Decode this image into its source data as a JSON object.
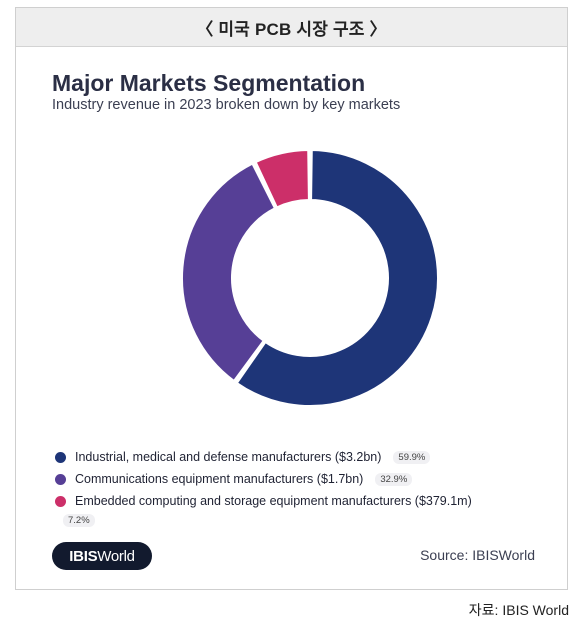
{
  "figure_caption": "〈 미국 PCB 시장 구조 〉",
  "footer_source": "자료: IBIS World",
  "logo": {
    "bold": "IBIS",
    "regular": "World"
  },
  "source_label": "Source: IBISWorld",
  "chart_data": {
    "type": "pie",
    "donut": true,
    "title": "Major Markets Segmentation",
    "subtitle": "Industry revenue in 2023 broken down by key markets",
    "legend_position": "bottom",
    "slices": [
      {
        "label": "Industrial, medical and defense manufacturers ($3.2bn)",
        "value": 59.9,
        "display": "59.9%",
        "color": "#1e3578"
      },
      {
        "label": "Communications equipment manufacturers ($1.7bn)",
        "value": 32.9,
        "display": "32.9%",
        "color": "#563f96"
      },
      {
        "label": "Embedded computing and storage equipment manufacturers ($379.1m)",
        "value": 7.2,
        "display": "7.2%",
        "color": "#cc2f69"
      }
    ]
  }
}
